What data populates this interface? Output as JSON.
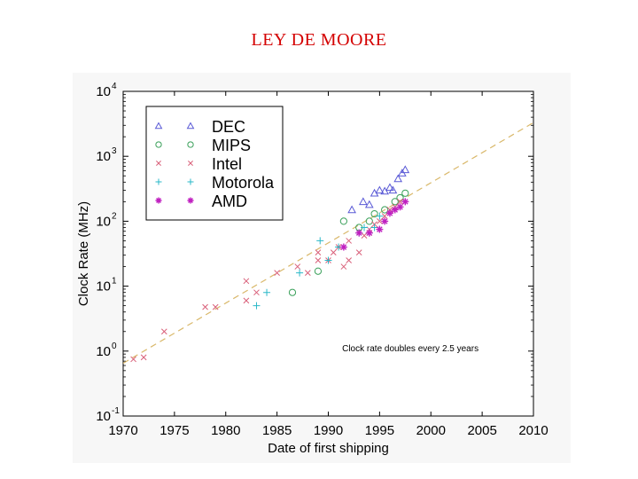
{
  "slide": {
    "title": "LEY DE MOORE"
  },
  "chart_data": {
    "type": "scatter",
    "xlabel": "Date of first shipping",
    "ylabel": "Clock Rate (MHz)",
    "xlim": [
      1970,
      2010
    ],
    "ylim": [
      0.1,
      10000
    ],
    "yscale": "log",
    "x_ticks": [
      "1970",
      "1975",
      "1980",
      "1985",
      "1990",
      "1995",
      "2000",
      "2005",
      "2010"
    ],
    "y_ticks": [
      {
        "value": 0.1,
        "base": "10",
        "exp": "-1"
      },
      {
        "value": 1,
        "base": "10",
        "exp": "0"
      },
      {
        "value": 10,
        "base": "10",
        "exp": "1"
      },
      {
        "value": 100,
        "base": "10",
        "exp": "2"
      },
      {
        "value": 1000,
        "base": "10",
        "exp": "3"
      },
      {
        "value": 10000,
        "base": "10",
        "exp": "4"
      }
    ],
    "grid": false,
    "legend_position": "top-left",
    "annotation": {
      "text": "Clock rate doubles every 2.5 years",
      "x": 1998,
      "y": 1.0
    },
    "trend": {
      "x": [
        1970,
        2010
      ],
      "y": [
        0.65,
        3300
      ],
      "color": "#d9b86a",
      "style": "dashed"
    },
    "series": [
      {
        "name": "DEC",
        "marker": "triangle",
        "color": "#5a5ad6",
        "points": [
          [
            1992.3,
            150
          ],
          [
            1993.4,
            200
          ],
          [
            1994.0,
            180
          ],
          [
            1994.5,
            270
          ],
          [
            1995.0,
            300
          ],
          [
            1995.5,
            290
          ],
          [
            1996.0,
            330
          ],
          [
            1996.3,
            300
          ],
          [
            1996.8,
            450
          ],
          [
            1997.2,
            550
          ],
          [
            1997.5,
            620
          ]
        ]
      },
      {
        "name": "MIPS",
        "marker": "circle",
        "color": "#3aa05a",
        "points": [
          [
            1986.5,
            8
          ],
          [
            1989.0,
            17
          ],
          [
            1991.5,
            100
          ],
          [
            1993.0,
            80
          ],
          [
            1994.0,
            100
          ],
          [
            1994.5,
            130
          ],
          [
            1995.5,
            150
          ],
          [
            1996.5,
            200
          ],
          [
            1997.0,
            230
          ],
          [
            1997.5,
            270
          ]
        ]
      },
      {
        "name": "Intel",
        "marker": "x",
        "color": "#d9607a",
        "points": [
          [
            1971,
            0.75
          ],
          [
            1972,
            0.8
          ],
          [
            1974,
            2
          ],
          [
            1978,
            4.77
          ],
          [
            1979,
            4.77
          ],
          [
            1982,
            6
          ],
          [
            1982,
            12
          ],
          [
            1983,
            8
          ],
          [
            1985,
            16
          ],
          [
            1987,
            20
          ],
          [
            1988,
            16
          ],
          [
            1989,
            25
          ],
          [
            1989,
            33
          ],
          [
            1990,
            25
          ],
          [
            1990.5,
            33
          ],
          [
            1991,
            40
          ],
          [
            1991.5,
            20
          ],
          [
            1992,
            25
          ],
          [
            1992,
            50
          ],
          [
            1993,
            33
          ],
          [
            1993.5,
            60
          ],
          [
            1994,
            66
          ],
          [
            1994,
            75
          ],
          [
            1994.5,
            90
          ],
          [
            1995,
            100
          ],
          [
            1995.5,
            120
          ],
          [
            1996,
            150
          ],
          [
            1996.5,
            166
          ],
          [
            1997,
            200
          ]
        ]
      },
      {
        "name": "Motorola",
        "marker": "plus",
        "color": "#2ab8c8",
        "points": [
          [
            1983,
            5
          ],
          [
            1984,
            8
          ],
          [
            1987.2,
            16
          ],
          [
            1989.2,
            50
          ],
          [
            1990,
            25
          ],
          [
            1991,
            40
          ],
          [
            1993,
            66
          ],
          [
            1993.5,
            80
          ],
          [
            1994,
            66
          ],
          [
            1994.5,
            80
          ],
          [
            1995,
            120
          ]
        ]
      },
      {
        "name": "AMD",
        "marker": "star",
        "color": "#c020c0",
        "points": [
          [
            1991.5,
            40
          ],
          [
            1993,
            66
          ],
          [
            1994,
            66
          ],
          [
            1995,
            75
          ],
          [
            1995.5,
            100
          ],
          [
            1996,
            133
          ],
          [
            1996.5,
            150
          ],
          [
            1997,
            166
          ],
          [
            1997.5,
            200
          ]
        ]
      }
    ]
  }
}
